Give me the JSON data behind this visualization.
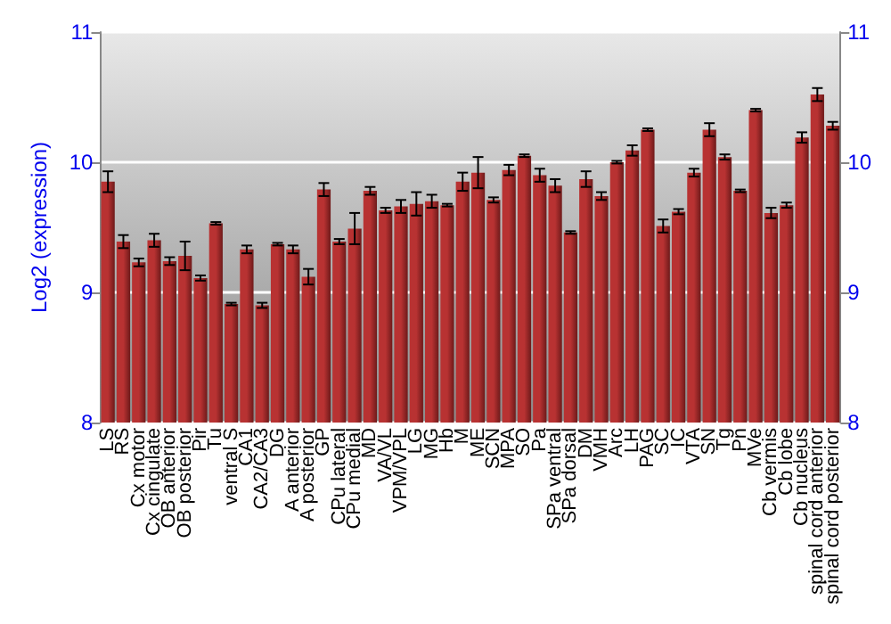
{
  "chart_data": {
    "type": "bar",
    "ylabel": "Log2 (expression)",
    "categories": [
      "LS",
      "RS",
      "Cx motor",
      "Cx cingulate",
      "OB anterior",
      "OB posterior",
      "Pir",
      "Tu",
      "ventral S",
      "CA1",
      "CA2/CA3",
      "DG",
      "A anterior",
      "A posterior",
      "GP",
      "CPu lateral",
      "CPu medial",
      "MD",
      "VA/VL",
      "VPM/VPL",
      "LG",
      "MG",
      "Hb",
      "M",
      "ME",
      "SCN",
      "MPA",
      "SO",
      "Pa",
      "SPa ventral",
      "SPa dorsal",
      "DM",
      "VMH",
      "Arc",
      "LH",
      "PAG",
      "SC",
      "IC",
      "VTA",
      "SN",
      "Tg",
      "Pn",
      "MVe",
      "Cb vermis",
      "Cb lobe",
      "Cb nucleus",
      "spinal cord anterior",
      "spinal cord posterior"
    ],
    "values": [
      9.85,
      9.39,
      9.23,
      9.4,
      9.24,
      9.28,
      9.11,
      9.53,
      8.91,
      9.33,
      8.9,
      9.37,
      9.33,
      9.12,
      9.79,
      9.39,
      9.49,
      9.78,
      9.63,
      9.66,
      9.68,
      9.7,
      9.67,
      9.85,
      9.92,
      9.71,
      9.94,
      10.05,
      9.9,
      9.82,
      9.46,
      9.87,
      9.74,
      10.0,
      10.09,
      10.25,
      9.51,
      9.62,
      9.92,
      10.25,
      10.04,
      9.78,
      10.4,
      9.61,
      9.67,
      10.19,
      10.52,
      10.28
    ],
    "errors": [
      0.08,
      0.05,
      0.03,
      0.05,
      0.03,
      0.11,
      0.02,
      0.01,
      0.01,
      0.03,
      0.02,
      0.01,
      0.03,
      0.06,
      0.05,
      0.02,
      0.12,
      0.03,
      0.02,
      0.05,
      0.09,
      0.05,
      0.01,
      0.07,
      0.12,
      0.02,
      0.04,
      0.01,
      0.05,
      0.05,
      0.01,
      0.06,
      0.03,
      0.01,
      0.04,
      0.01,
      0.05,
      0.02,
      0.03,
      0.05,
      0.02,
      0.01,
      0.01,
      0.04,
      0.02,
      0.04,
      0.05,
      0.03
    ],
    "color": "#b83232",
    "ylim": [
      8,
      11
    ],
    "yticks": [
      8,
      9,
      10,
      11
    ],
    "y2lim": [
      8,
      11
    ],
    "y2ticks": [
      8,
      9,
      10,
      11
    ],
    "grid": "y"
  }
}
